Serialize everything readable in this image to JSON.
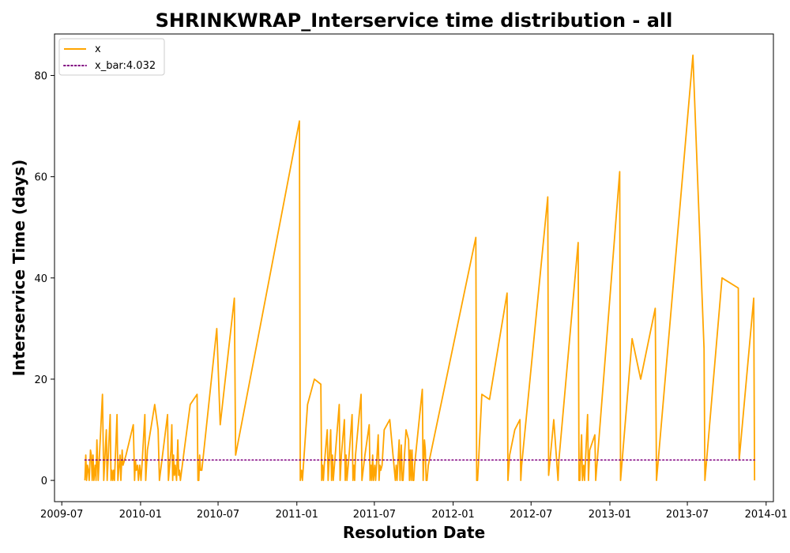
{
  "chart_data": {
    "type": "line",
    "title": "SHRINKWRAP_Interservice time distribution - all",
    "xlabel": "Resolution Date",
    "ylabel": "Interservice Time (days)",
    "xlim": [
      "2009-06-14",
      "2014-01-18"
    ],
    "ylim": [
      -4.2,
      88.2
    ],
    "x_ticks": [
      "2009-07",
      "2010-01",
      "2010-07",
      "2011-01",
      "2011-07",
      "2012-01",
      "2012-07",
      "2013-01",
      "2013-07",
      "2014-01"
    ],
    "y_ticks": [
      0,
      20,
      40,
      60,
      80
    ],
    "grid": false,
    "legend_position": "top-left",
    "series": [
      {
        "name": "x",
        "color": "#ffa500",
        "style": "solid",
        "points": [
          [
            "2009-08-24",
            0
          ],
          [
            "2009-08-26",
            5
          ],
          [
            "2009-08-28",
            0
          ],
          [
            "2009-08-30",
            3
          ],
          [
            "2009-09-01",
            2
          ],
          [
            "2009-09-03",
            0
          ],
          [
            "2009-09-06",
            6
          ],
          [
            "2009-09-08",
            5
          ],
          [
            "2009-09-10",
            0
          ],
          [
            "2009-09-12",
            5
          ],
          [
            "2009-09-14",
            0
          ],
          [
            "2009-09-17",
            3
          ],
          [
            "2009-09-19",
            0
          ],
          [
            "2009-09-21",
            8
          ],
          [
            "2009-09-24",
            0
          ],
          [
            "2009-09-27",
            5
          ],
          [
            "2009-10-04",
            17
          ],
          [
            "2009-10-07",
            0
          ],
          [
            "2009-10-13",
            10
          ],
          [
            "2009-10-15",
            0
          ],
          [
            "2009-10-22",
            13
          ],
          [
            "2009-10-24",
            0
          ],
          [
            "2009-10-26",
            2
          ],
          [
            "2009-10-28",
            0
          ],
          [
            "2009-10-30",
            2
          ],
          [
            "2009-11-01",
            0
          ],
          [
            "2009-11-07",
            13
          ],
          [
            "2009-11-09",
            0
          ],
          [
            "2009-11-14",
            5
          ],
          [
            "2009-11-16",
            0
          ],
          [
            "2009-11-19",
            6
          ],
          [
            "2009-11-21",
            3
          ],
          [
            "2009-11-28",
            5
          ],
          [
            "2009-12-15",
            11
          ],
          [
            "2009-12-18",
            0
          ],
          [
            "2009-12-20",
            4
          ],
          [
            "2009-12-22",
            2
          ],
          [
            "2009-12-25",
            3
          ],
          [
            "2009-12-27",
            0
          ],
          [
            "2009-12-30",
            3
          ],
          [
            "2010-01-02",
            0
          ],
          [
            "2010-01-05",
            4
          ],
          [
            "2010-01-11",
            13
          ],
          [
            "2010-01-13",
            0
          ],
          [
            "2010-01-17",
            6
          ],
          [
            "2010-02-03",
            15
          ],
          [
            "2010-02-11",
            10
          ],
          [
            "2010-02-14",
            0
          ],
          [
            "2010-03-05",
            13
          ],
          [
            "2010-03-07",
            0
          ],
          [
            "2010-03-13",
            6
          ],
          [
            "2010-03-15",
            11
          ],
          [
            "2010-03-17",
            0
          ],
          [
            "2010-03-19",
            5
          ],
          [
            "2010-03-21",
            1
          ],
          [
            "2010-03-23",
            3
          ],
          [
            "2010-03-26",
            0
          ],
          [
            "2010-03-29",
            8
          ],
          [
            "2010-03-31",
            1
          ],
          [
            "2010-04-02",
            2
          ],
          [
            "2010-04-04",
            0
          ],
          [
            "2010-04-13",
            6
          ],
          [
            "2010-04-27",
            15
          ],
          [
            "2010-05-13",
            17
          ],
          [
            "2010-05-15",
            0
          ],
          [
            "2010-05-17",
            0
          ],
          [
            "2010-05-19",
            5
          ],
          [
            "2010-05-21",
            2
          ],
          [
            "2010-05-24",
            2
          ],
          [
            "2010-06-28",
            30
          ],
          [
            "2010-07-06",
            11
          ],
          [
            "2010-08-08",
            36
          ],
          [
            "2010-08-11",
            5
          ],
          [
            "2011-01-07",
            71
          ],
          [
            "2011-01-09",
            0
          ],
          [
            "2011-01-12",
            2
          ],
          [
            "2011-01-14",
            0
          ],
          [
            "2011-01-26",
            15
          ],
          [
            "2011-02-11",
            20
          ],
          [
            "2011-02-26",
            19
          ],
          [
            "2011-02-28",
            0
          ],
          [
            "2011-03-02",
            3
          ],
          [
            "2011-03-04",
            0
          ],
          [
            "2011-03-06",
            3
          ],
          [
            "2011-03-13",
            10
          ],
          [
            "2011-03-15",
            0
          ],
          [
            "2011-03-21",
            10
          ],
          [
            "2011-03-23",
            0
          ],
          [
            "2011-03-25",
            5
          ],
          [
            "2011-03-27",
            0
          ],
          [
            "2011-04-10",
            15
          ],
          [
            "2011-04-12",
            0
          ],
          [
            "2011-04-15",
            5
          ],
          [
            "2011-04-22",
            12
          ],
          [
            "2011-04-24",
            0
          ],
          [
            "2011-04-26",
            5
          ],
          [
            "2011-04-28",
            0
          ],
          [
            "2011-05-03",
            5
          ],
          [
            "2011-05-10",
            13
          ],
          [
            "2011-05-12",
            0
          ],
          [
            "2011-05-14",
            3
          ],
          [
            "2011-05-16",
            0
          ],
          [
            "2011-05-18",
            5
          ],
          [
            "2011-05-31",
            17
          ],
          [
            "2011-06-02",
            0
          ],
          [
            "2011-06-09",
            5
          ],
          [
            "2011-06-19",
            11
          ],
          [
            "2011-06-21",
            0
          ],
          [
            "2011-06-23",
            3
          ],
          [
            "2011-06-25",
            0
          ],
          [
            "2011-06-27",
            5
          ],
          [
            "2011-06-29",
            0
          ],
          [
            "2011-07-02",
            3
          ],
          [
            "2011-07-04",
            0
          ],
          [
            "2011-07-10",
            9
          ],
          [
            "2011-07-12",
            0
          ],
          [
            "2011-07-14",
            3
          ],
          [
            "2011-07-16",
            2
          ],
          [
            "2011-07-19",
            3
          ],
          [
            "2011-07-24",
            10
          ],
          [
            "2011-08-06",
            12
          ],
          [
            "2011-08-19",
            0
          ],
          [
            "2011-08-21",
            3
          ],
          [
            "2011-08-23",
            0
          ],
          [
            "2011-08-28",
            8
          ],
          [
            "2011-08-30",
            0
          ],
          [
            "2011-09-02",
            7
          ],
          [
            "2011-09-04",
            0
          ],
          [
            "2011-09-06",
            0
          ],
          [
            "2011-09-08",
            3
          ],
          [
            "2011-09-13",
            10
          ],
          [
            "2011-09-19",
            8
          ],
          [
            "2011-09-21",
            0
          ],
          [
            "2011-09-23",
            6
          ],
          [
            "2011-09-25",
            0
          ],
          [
            "2011-09-27",
            6
          ],
          [
            "2011-09-29",
            0
          ],
          [
            "2011-10-01",
            0
          ],
          [
            "2011-10-03",
            3
          ],
          [
            "2011-10-21",
            18
          ],
          [
            "2011-10-23",
            0
          ],
          [
            "2011-10-26",
            8
          ],
          [
            "2011-10-28",
            6
          ],
          [
            "2011-10-30",
            0
          ],
          [
            "2011-11-01",
            0
          ],
          [
            "2011-11-04",
            3
          ],
          [
            "2012-02-23",
            48
          ],
          [
            "2012-02-25",
            0
          ],
          [
            "2012-02-27",
            0
          ],
          [
            "2012-02-29",
            3
          ],
          [
            "2012-03-08",
            17
          ],
          [
            "2012-03-26",
            16
          ],
          [
            "2012-05-06",
            37
          ],
          [
            "2012-05-08",
            0
          ],
          [
            "2012-05-12",
            5
          ],
          [
            "2012-05-24",
            10
          ],
          [
            "2012-06-05",
            12
          ],
          [
            "2012-06-07",
            0
          ],
          [
            "2012-06-09",
            3
          ],
          [
            "2012-08-09",
            56
          ],
          [
            "2012-08-11",
            1
          ],
          [
            "2012-08-23",
            12
          ],
          [
            "2012-09-02",
            0
          ],
          [
            "2012-09-04",
            4
          ],
          [
            "2012-10-19",
            47
          ],
          [
            "2012-10-21",
            0
          ],
          [
            "2012-10-23",
            0
          ],
          [
            "2012-10-27",
            9
          ],
          [
            "2012-10-29",
            0
          ],
          [
            "2012-11-01",
            3
          ],
          [
            "2012-11-03",
            0
          ],
          [
            "2012-11-10",
            13
          ],
          [
            "2012-11-12",
            0
          ],
          [
            "2012-11-15",
            6
          ],
          [
            "2012-11-27",
            9
          ],
          [
            "2012-11-29",
            0
          ],
          [
            "2013-01-24",
            61
          ],
          [
            "2013-01-26",
            0
          ],
          [
            "2013-02-22",
            28
          ],
          [
            "2013-03-14",
            20
          ],
          [
            "2013-04-17",
            34
          ],
          [
            "2013-04-20",
            0
          ],
          [
            "2013-07-14",
            84
          ],
          [
            "2013-08-09",
            26
          ],
          [
            "2013-08-11",
            0
          ],
          [
            "2013-09-20",
            40
          ],
          [
            "2013-10-28",
            38
          ],
          [
            "2013-10-30",
            4
          ],
          [
            "2013-12-03",
            36
          ],
          [
            "2013-12-05",
            0
          ]
        ]
      },
      {
        "name": "x_bar:4.032",
        "color": "#800080",
        "style": "dotted",
        "points": [
          [
            "2009-08-24",
            4.032
          ],
          [
            "2013-12-05",
            4.032
          ]
        ]
      }
    ]
  }
}
